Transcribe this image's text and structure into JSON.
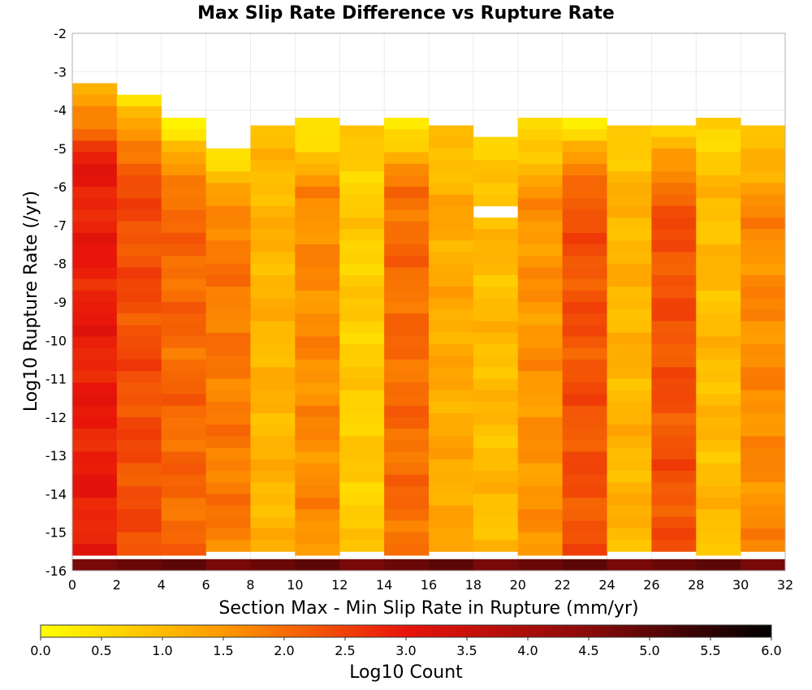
{
  "chart_data": {
    "type": "heatmap",
    "title": "Max Slip Rate Difference vs Rupture Rate",
    "xlabel": "Section Max - Min Slip Rate in Rupture (mm/yr)",
    "ylabel": "Log10 Rupture Rate (/yr)",
    "xlim": [
      0,
      32
    ],
    "ylim": [
      -16,
      -2
    ],
    "x_ticks": [
      "0",
      "2",
      "4",
      "6",
      "8",
      "10",
      "12",
      "14",
      "16",
      "18",
      "20",
      "22",
      "24",
      "26",
      "28",
      "30",
      "32"
    ],
    "y_ticks": [
      "-2",
      "-3",
      "-4",
      "-5",
      "-6",
      "-7",
      "-8",
      "-9",
      "-10",
      "-11",
      "-12",
      "-13",
      "-14",
      "-15",
      "-16"
    ],
    "colorbar": {
      "label": "Log10 Count",
      "min": 0,
      "max": 6,
      "ticks": [
        "0.0",
        "0.5",
        "1.0",
        "1.5",
        "2.0",
        "2.5",
        "3.0",
        "3.5",
        "4.0",
        "4.5",
        "5.0",
        "5.5",
        "6.0"
      ],
      "stops": [
        {
          "v": 0.0,
          "color": "#ffff00"
        },
        {
          "v": 1.5,
          "color": "#ff9900"
        },
        {
          "v": 3.0,
          "color": "#e8140a"
        },
        {
          "v": 4.5,
          "color": "#8a0a0a"
        },
        {
          "v": 6.0,
          "color": "#000000"
        }
      ]
    },
    "grid": true,
    "y_bin_width": 0.3,
    "bottom_row_value": 4.7,
    "columns": [
      {
        "x": [
          0,
          2
        ],
        "y_top": -3.3,
        "base": 2.9,
        "top_value": 1.0
      },
      {
        "x": [
          2,
          4
        ],
        "y_top": -3.6,
        "base": 2.35,
        "top_value": 0.6
      },
      {
        "x": [
          4,
          6
        ],
        "y_top": -4.2,
        "base": 2.05,
        "top_value": 0.3
      },
      {
        "x": [
          6,
          8
        ],
        "y_top": -5.0,
        "base": 1.85,
        "top_value": 0.5
      },
      {
        "x": [
          8,
          10
        ],
        "y_top": -4.4,
        "base": 1.1,
        "top_value": 0.9
      },
      {
        "x": [
          10,
          12
        ],
        "y_top": -4.2,
        "base": 1.65,
        "top_value": 0.3
      },
      {
        "x": [
          12,
          14
        ],
        "y_top": -4.4,
        "base": 0.75,
        "top_value": 0.7
      },
      {
        "x": [
          14,
          16
        ],
        "y_top": -4.2,
        "base": 2.0,
        "top_value": 0.4
      },
      {
        "x": [
          16,
          18
        ],
        "y_top": -4.4,
        "base": 1.25,
        "top_value": 0.8
      },
      {
        "x": [
          18,
          20
        ],
        "y_top": -4.7,
        "base": 1.0,
        "top_value": 0.6,
        "gap": [
          -6.7,
          -6.4
        ]
      },
      {
        "x": [
          20,
          22
        ],
        "y_top": -4.2,
        "base": 1.55,
        "top_value": 0.4
      },
      {
        "x": [
          22,
          24
        ],
        "y_top": -4.2,
        "base": 2.3,
        "top_value": 0.4
      },
      {
        "x": [
          24,
          26
        ],
        "y_top": -4.4,
        "base": 1.1,
        "top_value": 0.8
      },
      {
        "x": [
          26,
          28
        ],
        "y_top": -4.4,
        "base": 2.3,
        "top_value": 0.7
      },
      {
        "x": [
          28,
          30
        ],
        "y_top": -4.2,
        "base": 1.0,
        "top_value": 0.6
      },
      {
        "x": [
          30,
          32
        ],
        "y_top": -4.4,
        "base": 1.65,
        "top_value": 0.7
      }
    ]
  }
}
